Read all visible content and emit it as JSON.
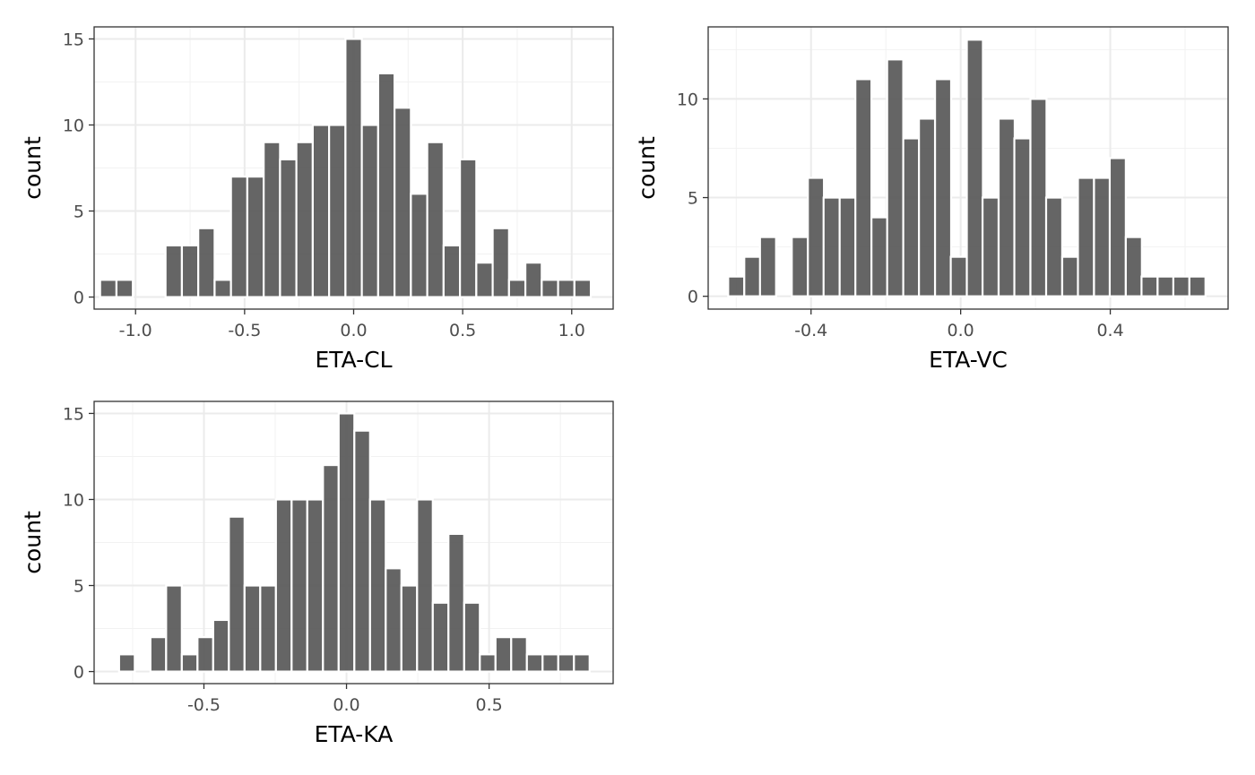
{
  "chart_data": [
    {
      "type": "bar",
      "xlabel": "ETA-CL",
      "ylabel": "count",
      "xlim": [
        -1.19,
        1.19
      ],
      "ylim": [
        -0.7,
        15.7
      ],
      "x_ticks": [
        {
          "value": -1.0,
          "label": "-1.0"
        },
        {
          "value": -0.5,
          "label": "-0.5"
        },
        {
          "value": 0.0,
          "label": "0.0"
        },
        {
          "value": 0.5,
          "label": "0.5"
        },
        {
          "value": 1.0,
          "label": "1.0"
        }
      ],
      "y_ticks": [
        {
          "value": 0,
          "label": "0"
        },
        {
          "value": 5,
          "label": "5"
        },
        {
          "value": 10,
          "label": "10"
        },
        {
          "value": 15,
          "label": "15"
        }
      ],
      "x": [
        -1.125,
        -1.05,
        -0.975,
        -0.9,
        -0.825,
        -0.75,
        -0.675,
        -0.6,
        -0.525,
        -0.45,
        -0.375,
        -0.3,
        -0.225,
        -0.15,
        -0.075,
        0.0,
        0.075,
        0.15,
        0.225,
        0.3,
        0.375,
        0.45,
        0.525,
        0.6,
        0.675,
        0.75,
        0.825,
        0.9,
        0.975,
        1.05
      ],
      "values": [
        1,
        1,
        0,
        0,
        3,
        3,
        4,
        1,
        7,
        7,
        9,
        8,
        9,
        10,
        10,
        15,
        10,
        13,
        11,
        6,
        9,
        3,
        8,
        2,
        4,
        1,
        2,
        1,
        1,
        1
      ],
      "bar_color": "#595959",
      "grid": true
    },
    {
      "type": "bar",
      "xlabel": "ETA-VC",
      "ylabel": "count",
      "xlim": [
        -0.675,
        0.715
      ],
      "ylim": [
        -0.65,
        13.65
      ],
      "x_ticks": [
        {
          "value": -0.4,
          "label": "-0.4"
        },
        {
          "value": 0.0,
          "label": "0.0"
        },
        {
          "value": 0.4,
          "label": "0.4"
        }
      ],
      "y_ticks": [
        {
          "value": 0,
          "label": "0"
        },
        {
          "value": 5,
          "label": "5"
        },
        {
          "value": 10,
          "label": "10"
        }
      ],
      "x": [
        -0.6,
        -0.557,
        -0.515,
        -0.472,
        -0.43,
        -0.387,
        -0.345,
        -0.302,
        -0.26,
        -0.217,
        -0.175,
        -0.132,
        -0.09,
        -0.047,
        -0.005,
        0.038,
        0.08,
        0.123,
        0.165,
        0.208,
        0.25,
        0.293,
        0.335,
        0.378,
        0.42,
        0.463,
        0.505,
        0.548,
        0.59,
        0.633
      ],
      "values": [
        1,
        2,
        3,
        0,
        3,
        6,
        5,
        5,
        11,
        4,
        12,
        8,
        9,
        11,
        2,
        13,
        5,
        9,
        8,
        10,
        5,
        2,
        6,
        6,
        7,
        3,
        1,
        1,
        1,
        1
      ],
      "bar_color": "#595959",
      "grid": true
    },
    {
      "type": "bar",
      "xlabel": "ETA-KA",
      "ylabel": "count",
      "xlim": [
        -0.885,
        0.935
      ],
      "ylim": [
        -0.7,
        15.7
      ],
      "x_ticks": [
        {
          "value": -0.5,
          "label": "-0.5"
        },
        {
          "value": 0.0,
          "label": "0.0"
        },
        {
          "value": 0.5,
          "label": "0.5"
        }
      ],
      "y_ticks": [
        {
          "value": 0,
          "label": "0"
        },
        {
          "value": 5,
          "label": "5"
        },
        {
          "value": 10,
          "label": "10"
        },
        {
          "value": 15,
          "label": "15"
        }
      ],
      "x": [
        -0.77,
        -0.715,
        -0.66,
        -0.605,
        -0.55,
        -0.495,
        -0.44,
        -0.385,
        -0.33,
        -0.275,
        -0.22,
        -0.165,
        -0.11,
        -0.055,
        0.0,
        0.055,
        0.11,
        0.165,
        0.22,
        0.275,
        0.33,
        0.385,
        0.44,
        0.495,
        0.55,
        0.605,
        0.66,
        0.715,
        0.77,
        0.825
      ],
      "values": [
        1,
        0,
        2,
        5,
        1,
        2,
        3,
        9,
        5,
        5,
        10,
        10,
        10,
        12,
        15,
        14,
        10,
        6,
        5,
        10,
        4,
        8,
        4,
        1,
        2,
        2,
        1,
        1,
        1,
        1
      ],
      "bar_color": "#595959",
      "grid": true
    }
  ]
}
